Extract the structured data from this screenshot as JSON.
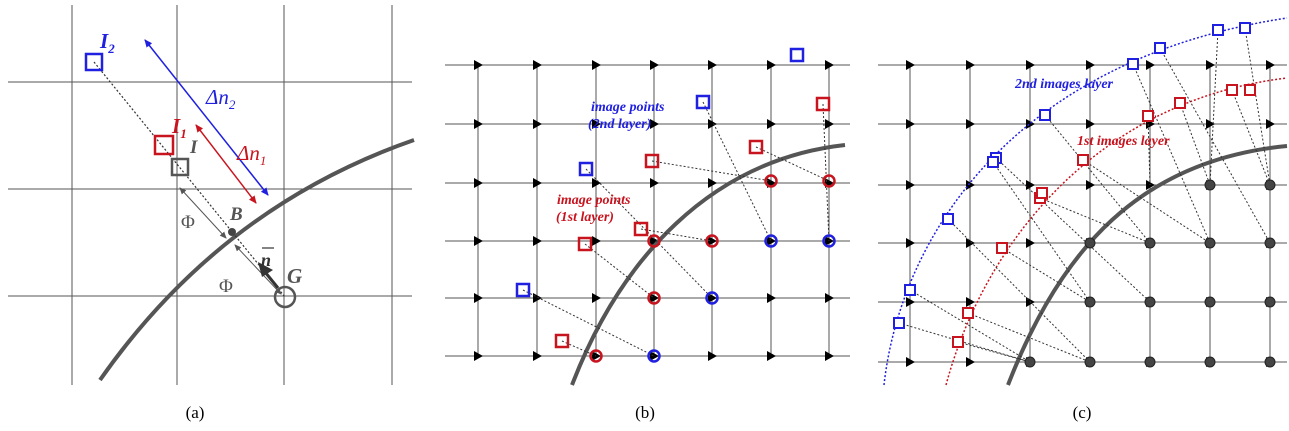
{
  "colors": {
    "red": "#c8141e",
    "blue": "#2020e0",
    "gray": "#555555",
    "dark": "#333333",
    "black": "#000000"
  },
  "panel_a": {
    "I2": "I",
    "I2_sub": "2",
    "I1": "I",
    "I1_sub": "1",
    "I": "I",
    "dn2_sym": "Δn",
    "dn2_sub": "2",
    "dn1_sym": "Δn",
    "dn1_sub": "1",
    "B": "B",
    "n": "n",
    "G": "G",
    "phi": "Φ"
  },
  "panel_b": {
    "blue_label": [
      "image points",
      "(2nd layer)"
    ],
    "red_label": [
      "image points",
      "(1st layer)"
    ]
  },
  "panel_c": {
    "blue_label": "2nd images layer",
    "red_label": "1st images layer"
  },
  "captions": [
    "(a)",
    "(b)",
    "(c)"
  ]
}
